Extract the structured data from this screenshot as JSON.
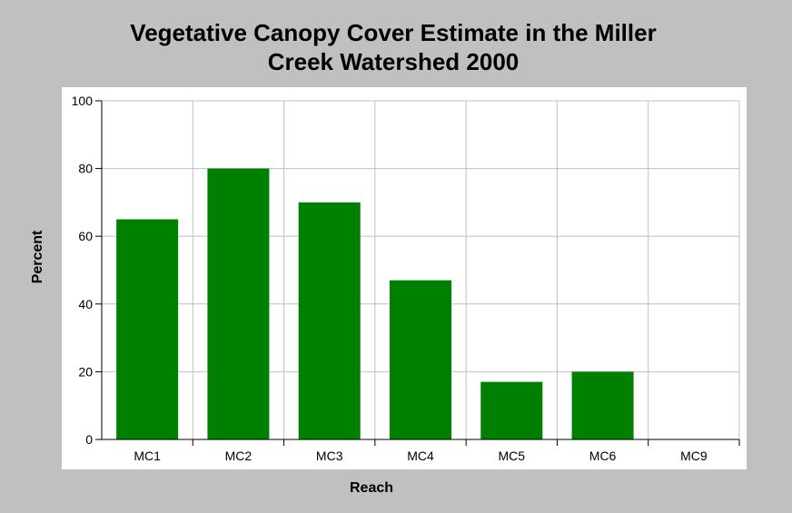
{
  "chart_data": {
    "type": "bar",
    "title_lines": [
      "Vegetative Canopy Cover Estimate in the Miller",
      "Creek Watershed 2000"
    ],
    "xlabel": "Reach",
    "ylabel": "Percent",
    "categories": [
      "MC1",
      "MC2",
      "MC3",
      "MC4",
      "MC5",
      "MC6",
      "MC9"
    ],
    "values": [
      65,
      80,
      70,
      47,
      17,
      20,
      0
    ],
    "ylim": [
      0,
      100
    ],
    "yticks": [
      0,
      20,
      40,
      60,
      80,
      100
    ],
    "grid": true,
    "bar_color": "#008000",
    "background_color": "#c0c0c0",
    "plot_background_color": "#ffffff",
    "grid_color": "#c0c0c0"
  }
}
